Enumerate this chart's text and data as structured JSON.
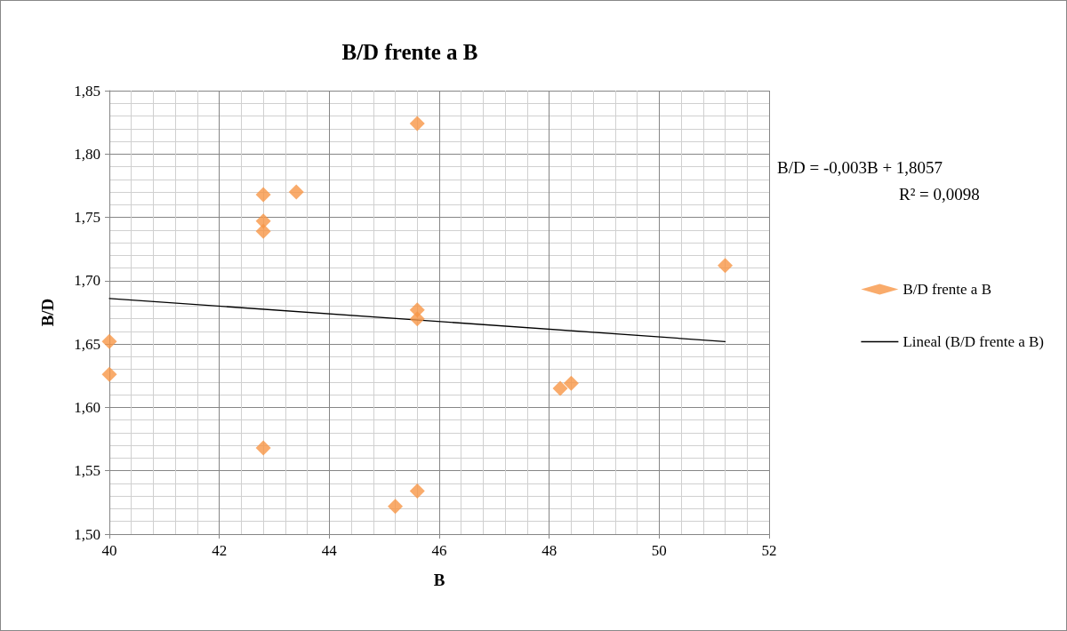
{
  "chart_data": {
    "type": "scatter",
    "title": "B/D frente a B",
    "xlabel": "B",
    "ylabel": "B/D",
    "xlim": [
      40,
      52
    ],
    "xticks": [
      40,
      42,
      44,
      46,
      48,
      50,
      52
    ],
    "ylim": [
      1.5,
      1.85
    ],
    "yticks": [
      {
        "value": 1.5,
        "label": "1,50"
      },
      {
        "value": 1.55,
        "label": "1,55"
      },
      {
        "value": 1.6,
        "label": "1,60"
      },
      {
        "value": 1.65,
        "label": "1,65"
      },
      {
        "value": 1.7,
        "label": "1,70"
      },
      {
        "value": 1.75,
        "label": "1,75"
      },
      {
        "value": 1.8,
        "label": "1,80"
      },
      {
        "value": 1.85,
        "label": "1,85"
      }
    ],
    "grid": true,
    "legend": "right",
    "marker": "diamond",
    "annotations": [
      "B/D = -0,003B + 1,8057",
      "R² = 0,0098"
    ],
    "series": [
      {
        "name": "B/D frente a B",
        "color": "#f79646",
        "x": [
          40,
          40,
          42.8,
          42.8,
          42.8,
          42.8,
          43.4,
          45.6,
          45.6,
          45.6,
          45.6,
          45.2,
          48.2,
          48.4,
          51.2
        ],
        "values": [
          1.652,
          1.626,
          1.768,
          1.747,
          1.739,
          1.568,
          1.77,
          1.824,
          1.677,
          1.67,
          1.534,
          1.522,
          1.615,
          1.619,
          1.712
        ]
      },
      {
        "name": "Lineal (B/D frente a B)",
        "type": "line",
        "color": "#000000",
        "marker": "none",
        "x": [
          40,
          51.2
        ],
        "values": [
          1.686,
          1.652
        ]
      }
    ]
  }
}
